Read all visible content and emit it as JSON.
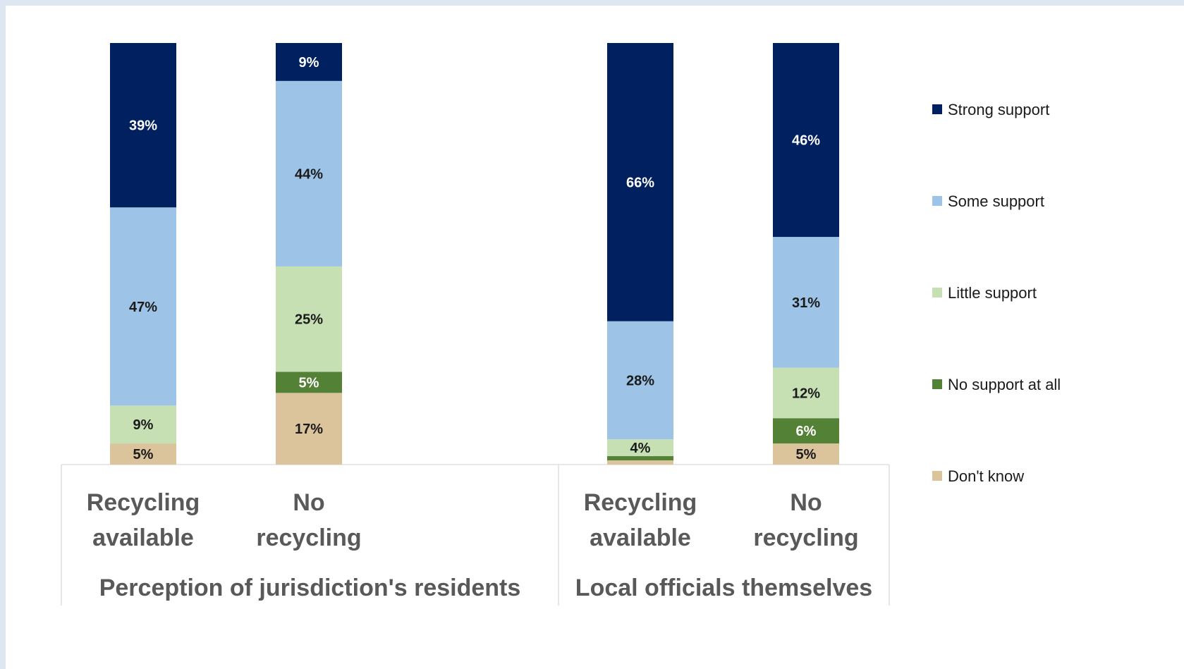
{
  "chart_data": {
    "type": "bar",
    "stacked": true,
    "groups": [
      {
        "label": "Perception of jurisdiction's residents",
        "categories": [
          "Recycling available",
          "No recycling"
        ]
      },
      {
        "label": "Local officials themselves",
        "categories": [
          "Recycling available",
          "No recycling"
        ]
      }
    ],
    "categories": [
      "Recycling available",
      "No recycling",
      "Recycling available",
      "No recycling"
    ],
    "series": [
      {
        "name": "Don't know",
        "color": "#dbc39b",
        "values": [
          5,
          17,
          1,
          5
        ],
        "labels": [
          "5%",
          "17%",
          "",
          "5%"
        ],
        "label_color": "#1a1a1a"
      },
      {
        "name": "No support at all",
        "color": "#538135",
        "values": [
          0,
          5,
          1,
          6
        ],
        "labels": [
          "",
          "5%",
          "",
          "6%"
        ],
        "label_color": "#ffffff"
      },
      {
        "name": "Little support",
        "color": "#c6e0b4",
        "values": [
          9,
          25,
          4,
          12
        ],
        "labels": [
          "9%",
          "25%",
          "4%",
          "12%"
        ],
        "label_color": "#1a1a1a"
      },
      {
        "name": "Some support",
        "color": "#9dc3e6",
        "values": [
          47,
          44,
          28,
          31
        ],
        "labels": [
          "47%",
          "44%",
          "28%",
          "31%"
        ],
        "label_color": "#1a1a1a"
      },
      {
        "name": "Strong support",
        "color": "#002060",
        "values": [
          39,
          9,
          66,
          46
        ],
        "labels": [
          "39%",
          "9%",
          "66%",
          "46%"
        ],
        "label_color": "#ffffff"
      }
    ],
    "ylim": [
      0,
      100
    ],
    "grid": false,
    "legend": {
      "position": "right",
      "order": [
        "Strong support",
        "Some support",
        "Little support",
        "No support at all",
        "Don't know"
      ]
    }
  }
}
